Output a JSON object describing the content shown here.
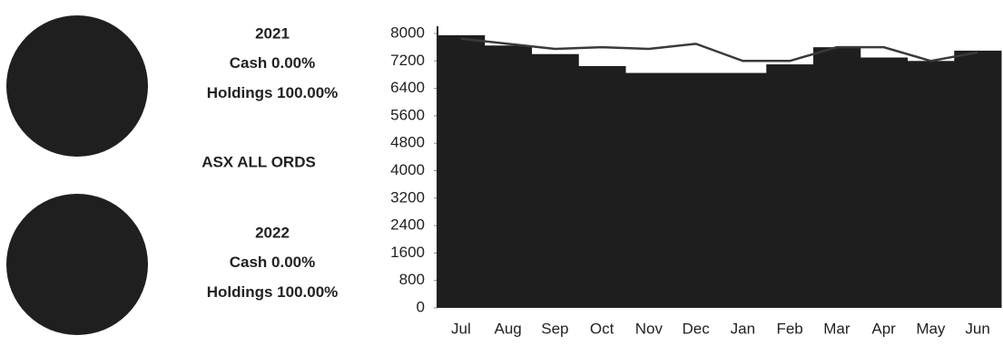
{
  "chart_data": [
    {
      "type": "pie",
      "title": "2021",
      "labels": [
        "Cash",
        "Holdings"
      ],
      "values": [
        0,
        100
      ],
      "value_labels": [
        "0.00%",
        "100.00%"
      ],
      "colors": [
        "#777777",
        "#1f1f1f"
      ]
    },
    {
      "type": "pie",
      "title": "2022",
      "labels": [
        "Cash",
        "Holdings"
      ],
      "values": [
        0,
        100
      ],
      "value_labels": [
        "0.00%",
        "100.00%"
      ],
      "colors": [
        "#777777",
        "#1f1f1f"
      ]
    },
    {
      "type": "bar",
      "title": "ASX ALL ORDS",
      "categories": [
        "Jul",
        "Aug",
        "Sep",
        "Oct",
        "Nov",
        "Dec",
        "Jan",
        "Feb",
        "Mar",
        "Apr",
        "May",
        "Jun"
      ],
      "series": [
        {
          "type": "bar",
          "color": "#1e1e1e",
          "values": [
            7950,
            7650,
            7400,
            7050,
            6850,
            6850,
            6850,
            7100,
            7600,
            7300,
            7200,
            7500
          ]
        },
        {
          "type": "line",
          "color": "#3a3a3a",
          "values": [
            7850,
            7700,
            7550,
            7600,
            7550,
            7700,
            7200,
            7200,
            7600,
            7600,
            7200,
            7450
          ]
        }
      ],
      "ylim": [
        0,
        8000
      ],
      "yticks": [
        0,
        800,
        1600,
        2400,
        3200,
        4000,
        4800,
        5600,
        6400,
        7200,
        8000
      ]
    }
  ]
}
